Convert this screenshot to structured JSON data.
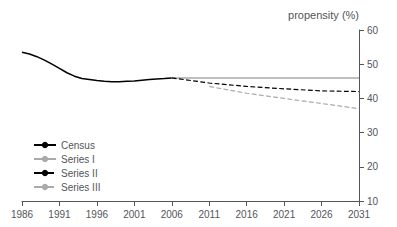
{
  "chart_data": {
    "type": "line",
    "ylabel": "propensity (%)",
    "series": [
      {
        "name": "Census",
        "color": "#000000",
        "line_style": "solid",
        "x": [
          1986,
          1987,
          1988,
          1989,
          1990,
          1991,
          1992,
          1993,
          1994,
          1995,
          1996,
          1997,
          1998,
          1999,
          2000,
          2001,
          2002,
          2003,
          2004,
          2005,
          2006
        ],
        "values": [
          53.5,
          53.0,
          52.2,
          51.2,
          50.0,
          48.8,
          47.5,
          46.5,
          45.8,
          45.5,
          45.2,
          45.0,
          44.9,
          44.9,
          45.0,
          45.1,
          45.3,
          45.5,
          45.7,
          45.8,
          46.0
        ]
      },
      {
        "name": "Series I",
        "color": "#aaaaaa",
        "line_style": "solid",
        "x": [
          2006,
          2011,
          2016,
          2021,
          2026,
          2031
        ],
        "values": [
          46.0,
          46.0,
          46.0,
          46.0,
          46.0,
          46.0
        ]
      },
      {
        "name": "Series II",
        "color": "#000000",
        "line_style": "dashed",
        "x": [
          2006,
          2011,
          2016,
          2021,
          2026,
          2031
        ],
        "values": [
          46.0,
          44.5,
          43.5,
          42.8,
          42.2,
          42.0
        ]
      },
      {
        "name": "Series III",
        "color": "#aaaaaa",
        "line_style": "dashed",
        "x": [
          2011,
          2016,
          2021,
          2026,
          2031
        ],
        "values": [
          43.5,
          41.5,
          40.0,
          38.5,
          37.0
        ]
      }
    ],
    "xlim": [
      1986,
      2031
    ],
    "xticks": [
      1986,
      1991,
      1996,
      2001,
      2006,
      2011,
      2016,
      2021,
      2026,
      2031
    ],
    "ylim": [
      10,
      60
    ],
    "yticks": [
      10,
      20,
      30,
      40,
      50,
      60
    ],
    "grid": false,
    "legend": "lower left"
  }
}
